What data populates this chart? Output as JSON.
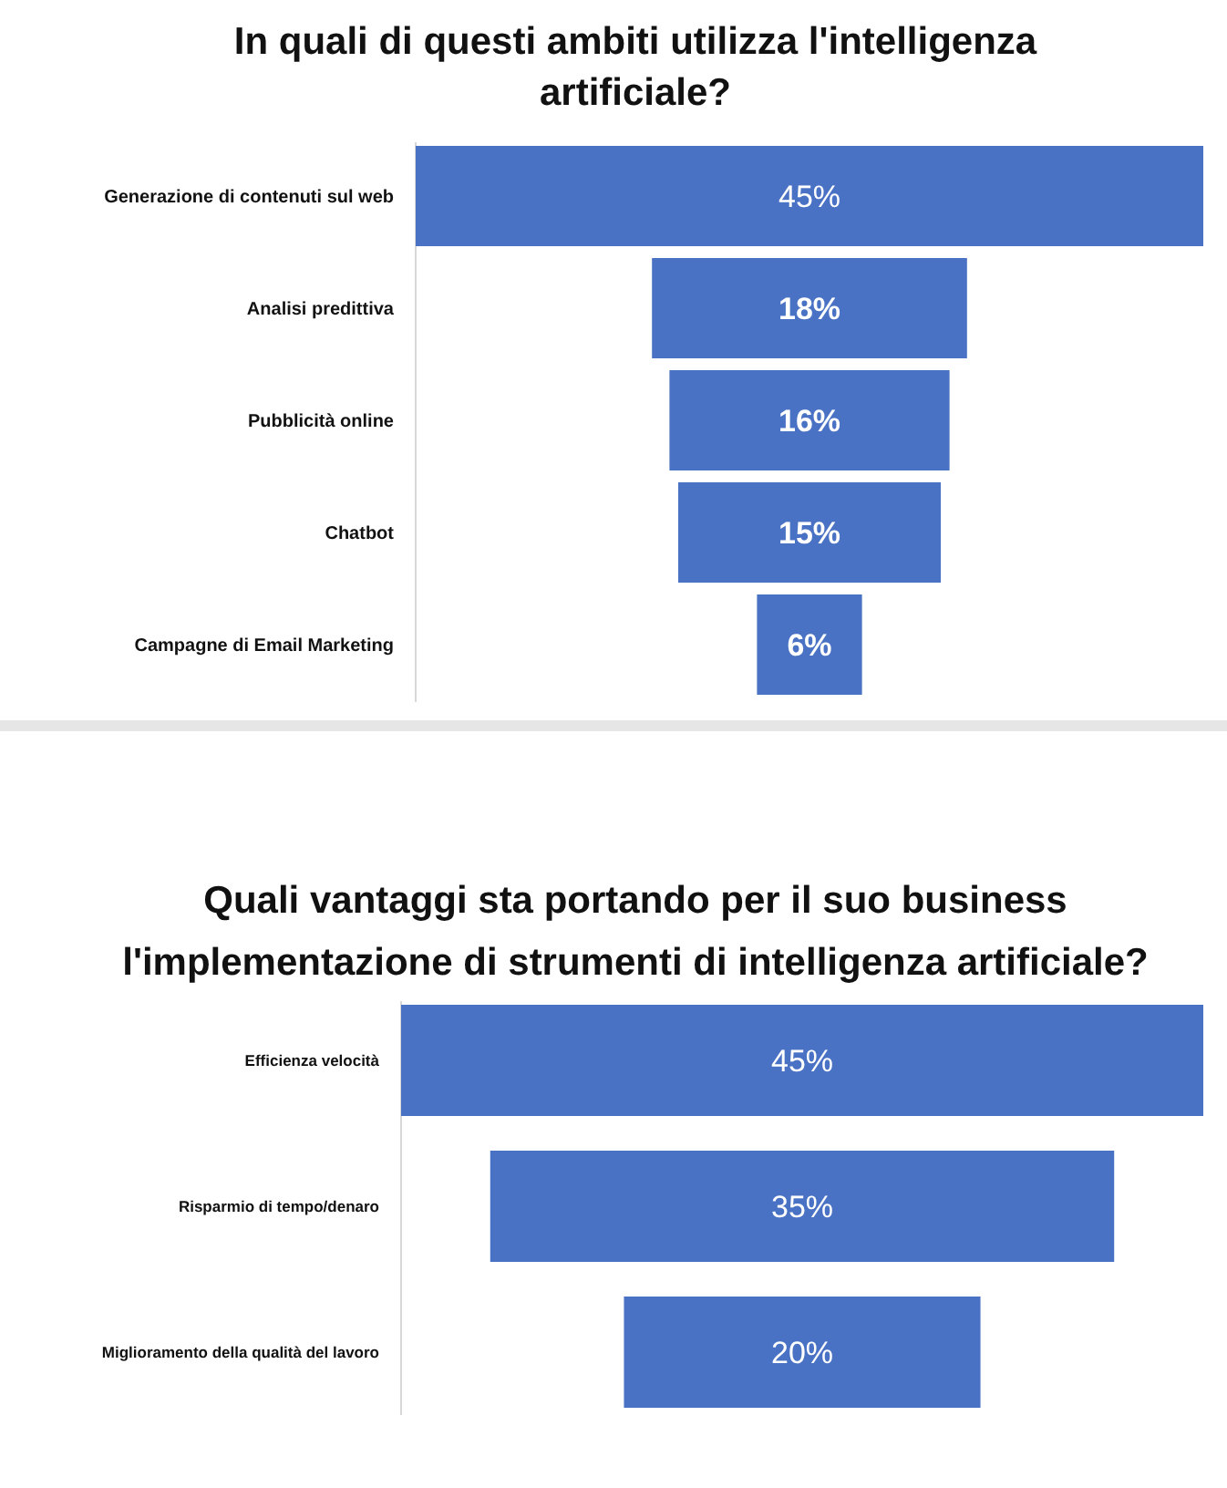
{
  "chart_data": [
    {
      "type": "other",
      "title": "In quali di questi ambiti utilizza l'intelligenza artificiale?",
      "categories": [
        "Generazione di contenuti sul web",
        "Analisi predittiva",
        "Pubblicità online",
        "Chatbot",
        "Campagne di Email Marketing"
      ],
      "values": [
        45,
        18,
        16,
        15,
        6
      ],
      "value_labels": [
        "45%",
        "18%",
        "16%",
        "15%",
        "6%"
      ],
      "color": "#4a72c4"
    },
    {
      "type": "other",
      "title": "Quali vantaggi sta portando per il suo business l'implementazione di strumenti di intelligenza artificiale?",
      "categories": [
        "Efficienza velocità",
        "Risparmio di tempo/denaro",
        "Miglioramento della qualità del lavoro"
      ],
      "values": [
        45,
        35,
        20
      ],
      "value_labels": [
        "45%",
        "35%",
        "20%"
      ],
      "color": "#4a72c4"
    }
  ]
}
